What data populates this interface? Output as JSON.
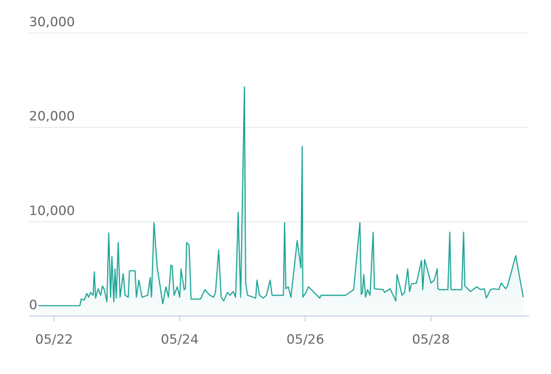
{
  "chart_data": {
    "type": "area",
    "x": [
      21.75,
      22.41,
      22.43,
      22.48,
      22.52,
      22.55,
      22.58,
      22.62,
      22.64,
      22.66,
      22.7,
      22.74,
      22.77,
      22.8,
      22.84,
      22.87,
      22.9,
      22.92,
      22.95,
      22.97,
      22.99,
      23.02,
      23.05,
      23.1,
      23.13,
      23.18,
      23.2,
      23.29,
      23.31,
      23.35,
      23.4,
      23.49,
      23.53,
      23.55,
      23.59,
      23.64,
      23.73,
      23.78,
      23.82,
      23.86,
      23.88,
      23.91,
      23.96,
      24.0,
      24.02,
      24.07,
      24.09,
      24.11,
      24.15,
      24.18,
      24.33,
      24.4,
      24.48,
      24.54,
      24.57,
      24.62,
      24.66,
      24.7,
      24.76,
      24.8,
      24.85,
      24.89,
      24.91,
      24.93,
      24.97,
      25.03,
      25.05,
      25.08,
      25.21,
      25.23,
      25.27,
      25.33,
      25.38,
      25.44,
      25.47,
      25.65,
      25.67,
      25.69,
      25.73,
      25.77,
      25.87,
      25.93,
      25.95,
      25.96,
      26.01,
      26.05,
      26.23,
      26.25,
      26.64,
      26.77,
      26.87,
      26.89,
      26.91,
      26.93,
      26.96,
      26.99,
      27.03,
      27.08,
      27.1,
      27.24,
      27.26,
      27.35,
      27.44,
      27.46,
      27.54,
      27.58,
      27.63,
      27.66,
      27.69,
      27.77,
      27.85,
      27.87,
      27.9,
      28.0,
      28.05,
      28.1,
      28.11,
      28.14,
      28.27,
      28.3,
      28.32,
      28.49,
      28.52,
      28.54,
      28.63,
      28.73,
      28.79,
      28.85,
      28.88,
      28.95,
      29.0,
      29.08,
      29.12,
      29.19,
      29.22,
      29.35,
      29.47
    ],
    "values": [
      1100,
      1100,
      1800,
      1700,
      2400,
      2000,
      2500,
      2200,
      4700,
      1900,
      2900,
      2200,
      3200,
      2800,
      1500,
      8800,
      2000,
      6300,
      1500,
      5000,
      1900,
      7800,
      2000,
      4500,
      2200,
      2000,
      4800,
      4800,
      2000,
      3800,
      2000,
      2200,
      4100,
      2000,
      9900,
      5300,
      1300,
      3100,
      2000,
      5400,
      5300,
      2200,
      3100,
      2000,
      5000,
      2800,
      2900,
      7800,
      7500,
      1800,
      1800,
      2800,
      2200,
      2000,
      2500,
      7000,
      2000,
      1600,
      2500,
      2200,
      2600,
      2000,
      6400,
      11000,
      2000,
      24300,
      3500,
      2200,
      1900,
      3800,
      2200,
      1900,
      2200,
      3800,
      2200,
      2200,
      9900,
      2900,
      3100,
      2000,
      8000,
      5100,
      18000,
      2000,
      2500,
      3100,
      1900,
      2200,
      2200,
      2800,
      9900,
      2300,
      2500,
      4400,
      2000,
      2800,
      2200,
      8900,
      2900,
      2800,
      2500,
      2900,
      1600,
      4400,
      2200,
      2500,
      5000,
      2600,
      3400,
      3500,
      5900,
      2800,
      6000,
      3500,
      3800,
      5000,
      2900,
      2800,
      2800,
      8900,
      2800,
      2800,
      8900,
      3200,
      2600,
      3100,
      2800,
      2900,
      1900,
      2800,
      2900,
      2800,
      3500,
      2900,
      3200,
      6400,
      2000
    ],
    "color": "#1aa394",
    "xlim": [
      21.6,
      29.56
    ],
    "xticks": [
      {
        "value": 22,
        "label": "05/22"
      },
      {
        "value": 24,
        "label": "05/24"
      },
      {
        "value": 26,
        "label": "05/26"
      },
      {
        "value": 28,
        "label": "05/28"
      }
    ],
    "ylim": [
      0,
      30000
    ],
    "yticks": [
      0,
      {
        "value": 10000,
        "label": "10,000"
      },
      {
        "value": 20000,
        "label": "20,000"
      },
      {
        "value": 30000,
        "label": "30,000"
      }
    ],
    "grid": true
  }
}
